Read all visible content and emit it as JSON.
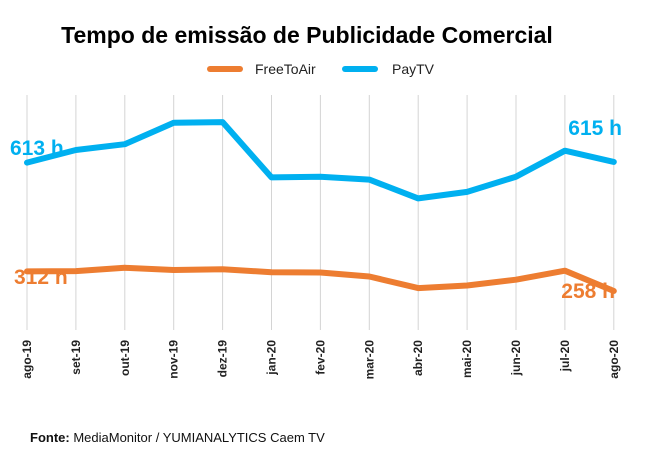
{
  "chart_data": {
    "type": "line",
    "title": "Tempo de emissão de Publicidade Comercial",
    "categories": [
      "ago-19",
      "set-19",
      "out-19",
      "nov-19",
      "dez-19",
      "jan-20",
      "fev-20",
      "mar-20",
      "abr-20",
      "mai-20",
      "jun-20",
      "jul-20",
      "ago-20"
    ],
    "series": [
      {
        "name": "FreeToAir",
        "color": "#ED7D31",
        "values": [
          312,
          313,
          322,
          316,
          318,
          310,
          309,
          298,
          266,
          273,
          289,
          314,
          258
        ],
        "labels": [
          {
            "index": 0,
            "text": "312 h"
          },
          {
            "index": 12,
            "text": "258 h"
          }
        ]
      },
      {
        "name": "PayTV",
        "color": "#00B0F0",
        "values": [
          613,
          648,
          664,
          723,
          725,
          572,
          574,
          566,
          514,
          532,
          574,
          646,
          615
        ],
        "labels": [
          {
            "index": 0,
            "text": "613 h"
          },
          {
            "index": 12,
            "text": "615 h"
          }
        ]
      }
    ],
    "xlabel": "",
    "ylabel": "",
    "ylim": [
      150,
      800
    ],
    "grid": "vertical",
    "legend": "top-center"
  },
  "source": {
    "label": "Fonte:",
    "text": "MediaMonitor / YUMIANALYTICS Caem TV"
  }
}
